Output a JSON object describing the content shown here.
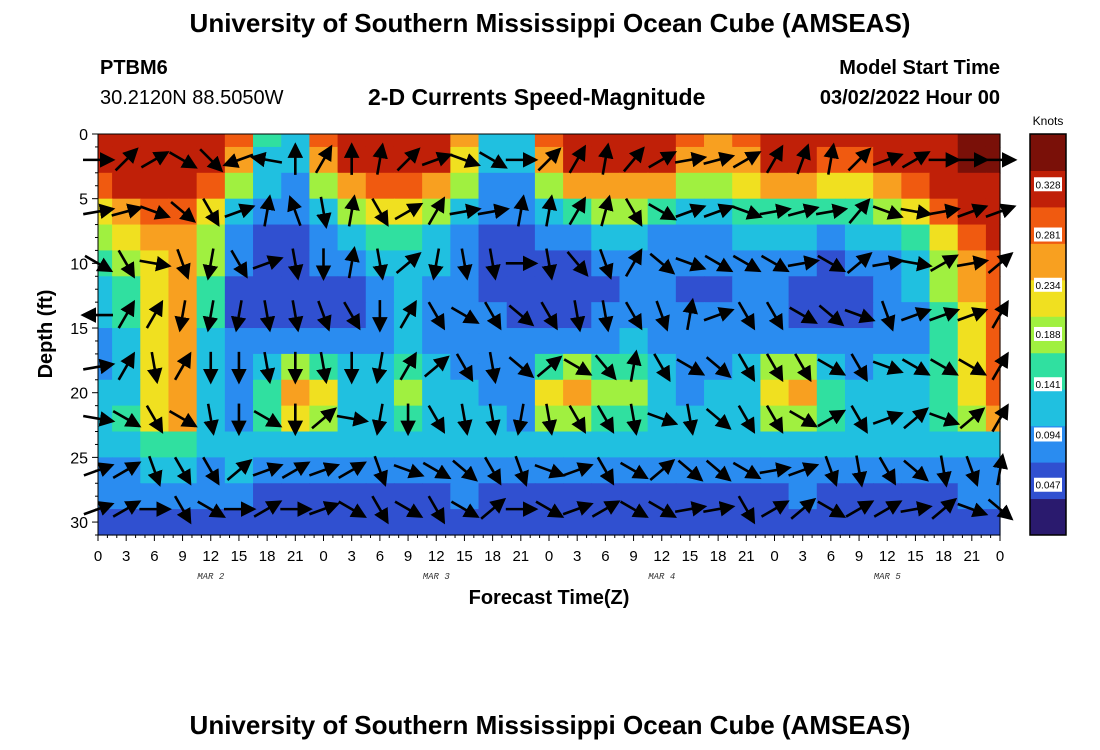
{
  "header": {
    "title": "University of Southern Mississippi Ocean Cube (AMSEAS)",
    "station": "PTBM6",
    "coords": "30.2120N  88.5050W",
    "plot_title": "2-D Currents Speed-Magnitude",
    "model_start_label": "Model Start Time",
    "model_start_value": "03/02/2022 Hour 00"
  },
  "footer": {
    "title": "University of Southern Mississippi Ocean Cube (AMSEAS)"
  },
  "chart_data": {
    "type": "heatmap",
    "title": "2-D Currents Speed-Magnitude",
    "xlabel": "Forecast Time(Z)",
    "ylabel": "Depth (ft)",
    "x_ticks": [
      "0",
      "3",
      "6",
      "9",
      "12",
      "15",
      "18",
      "21",
      "0",
      "3",
      "6",
      "9",
      "12",
      "15",
      "18",
      "21",
      "0",
      "3",
      "6",
      "9",
      "12",
      "15",
      "18",
      "21",
      "0",
      "3",
      "6",
      "9",
      "12",
      "15",
      "18",
      "21",
      "0"
    ],
    "x_hours_range": [
      0,
      96
    ],
    "day_labels": [
      {
        "label": "MAR 2",
        "hour": 12
      },
      {
        "label": "MAR 3",
        "hour": 36
      },
      {
        "label": "MAR 4",
        "hour": 60
      },
      {
        "label": "MAR 5",
        "hour": 84
      }
    ],
    "y_ticks": [
      0,
      5,
      10,
      15,
      20,
      25,
      30
    ],
    "ylim": [
      0,
      31
    ],
    "colorbar": {
      "unit": "Knots",
      "ticks": [
        0.328,
        0.281,
        0.234,
        0.188,
        0.141,
        0.094,
        0.047
      ],
      "range": [
        0.0,
        0.375
      ],
      "colors": [
        "#2a1a6e",
        "#3050d0",
        "#2a8cf0",
        "#20c0e0",
        "#30e0a0",
        "#a0f040",
        "#f0e020",
        "#f8a020",
        "#f05a10",
        "#c02008",
        "#7a1008"
      ]
    },
    "speed_grid": {
      "depths_ft": [
        0,
        2,
        4,
        6,
        8,
        10,
        12,
        14,
        16,
        18,
        20,
        22,
        24,
        26,
        28,
        30
      ],
      "hours": [
        0,
        3,
        6,
        9,
        12,
        15,
        18,
        21,
        24,
        27,
        30,
        33,
        36,
        39,
        42,
        45,
        48,
        51,
        54,
        57,
        60,
        63,
        66,
        69,
        72,
        75,
        78,
        81,
        84,
        87,
        90,
        93,
        96
      ],
      "values": [
        [
          0.33,
          0.33,
          0.34,
          0.34,
          0.33,
          0.3,
          0.15,
          0.1,
          0.3,
          0.33,
          0.34,
          0.34,
          0.33,
          0.28,
          0.12,
          0.1,
          0.3,
          0.33,
          0.34,
          0.33,
          0.33,
          0.3,
          0.28,
          0.3,
          0.33,
          0.33,
          0.33,
          0.32,
          0.33,
          0.34,
          0.35,
          0.36,
          0.36
        ],
        [
          0.33,
          0.33,
          0.34,
          0.34,
          0.32,
          0.25,
          0.12,
          0.1,
          0.28,
          0.32,
          0.33,
          0.33,
          0.32,
          0.24,
          0.1,
          0.1,
          0.28,
          0.32,
          0.33,
          0.32,
          0.32,
          0.28,
          0.26,
          0.28,
          0.32,
          0.32,
          0.31,
          0.3,
          0.32,
          0.34,
          0.35,
          0.36,
          0.36
        ],
        [
          0.3,
          0.32,
          0.33,
          0.33,
          0.3,
          0.2,
          0.1,
          0.09,
          0.2,
          0.28,
          0.3,
          0.3,
          0.28,
          0.18,
          0.09,
          0.09,
          0.2,
          0.26,
          0.28,
          0.28,
          0.26,
          0.2,
          0.2,
          0.22,
          0.26,
          0.26,
          0.24,
          0.24,
          0.26,
          0.3,
          0.33,
          0.35,
          0.35
        ],
        [
          0.24,
          0.28,
          0.3,
          0.3,
          0.24,
          0.12,
          0.07,
          0.06,
          0.12,
          0.18,
          0.22,
          0.22,
          0.2,
          0.12,
          0.07,
          0.06,
          0.1,
          0.16,
          0.18,
          0.18,
          0.16,
          0.12,
          0.12,
          0.14,
          0.16,
          0.16,
          0.15,
          0.16,
          0.18,
          0.24,
          0.3,
          0.33,
          0.34
        ],
        [
          0.18,
          0.22,
          0.26,
          0.28,
          0.2,
          0.08,
          0.05,
          0.04,
          0.08,
          0.1,
          0.14,
          0.16,
          0.12,
          0.08,
          0.05,
          0.04,
          0.06,
          0.08,
          0.1,
          0.1,
          0.08,
          0.07,
          0.08,
          0.1,
          0.1,
          0.1,
          0.09,
          0.1,
          0.12,
          0.16,
          0.24,
          0.3,
          0.32
        ],
        [
          0.14,
          0.18,
          0.24,
          0.28,
          0.18,
          0.06,
          0.04,
          0.02,
          0.06,
          0.06,
          0.1,
          0.12,
          0.1,
          0.07,
          0.05,
          0.03,
          0.04,
          0.05,
          0.06,
          0.08,
          0.07,
          0.06,
          0.06,
          0.08,
          0.08,
          0.06,
          0.04,
          0.06,
          0.08,
          0.12,
          0.2,
          0.28,
          0.31
        ],
        [
          0.12,
          0.16,
          0.24,
          0.28,
          0.16,
          0.05,
          0.04,
          0.03,
          0.05,
          0.04,
          0.08,
          0.1,
          0.09,
          0.06,
          0.05,
          0.04,
          0.03,
          0.03,
          0.05,
          0.07,
          0.06,
          0.05,
          0.05,
          0.06,
          0.06,
          0.05,
          0.03,
          0.05,
          0.06,
          0.1,
          0.18,
          0.26,
          0.3
        ],
        [
          0.1,
          0.14,
          0.24,
          0.28,
          0.14,
          0.05,
          0.05,
          0.04,
          0.05,
          0.02,
          0.06,
          0.1,
          0.08,
          0.06,
          0.06,
          0.05,
          0.04,
          0.04,
          0.06,
          0.08,
          0.06,
          0.06,
          0.06,
          0.06,
          0.06,
          0.05,
          0.04,
          0.05,
          0.06,
          0.08,
          0.16,
          0.24,
          0.3
        ],
        [
          0.09,
          0.12,
          0.24,
          0.28,
          0.12,
          0.06,
          0.06,
          0.06,
          0.07,
          0.06,
          0.08,
          0.12,
          0.09,
          0.08,
          0.07,
          0.06,
          0.07,
          0.08,
          0.09,
          0.12,
          0.09,
          0.08,
          0.08,
          0.08,
          0.08,
          0.07,
          0.06,
          0.07,
          0.08,
          0.08,
          0.14,
          0.22,
          0.3
        ],
        [
          0.08,
          0.11,
          0.24,
          0.27,
          0.12,
          0.07,
          0.1,
          0.18,
          0.16,
          0.1,
          0.1,
          0.16,
          0.1,
          0.09,
          0.08,
          0.08,
          0.16,
          0.2,
          0.14,
          0.16,
          0.1,
          0.08,
          0.09,
          0.1,
          0.18,
          0.2,
          0.12,
          0.09,
          0.1,
          0.1,
          0.14,
          0.22,
          0.3
        ],
        [
          0.1,
          0.12,
          0.24,
          0.27,
          0.12,
          0.08,
          0.14,
          0.26,
          0.24,
          0.12,
          0.12,
          0.18,
          0.1,
          0.1,
          0.09,
          0.08,
          0.22,
          0.26,
          0.18,
          0.18,
          0.1,
          0.09,
          0.1,
          0.12,
          0.24,
          0.26,
          0.14,
          0.1,
          0.1,
          0.1,
          0.14,
          0.22,
          0.3
        ],
        [
          0.12,
          0.14,
          0.22,
          0.26,
          0.12,
          0.09,
          0.14,
          0.22,
          0.2,
          0.12,
          0.12,
          0.16,
          0.11,
          0.1,
          0.1,
          0.09,
          0.18,
          0.2,
          0.16,
          0.16,
          0.11,
          0.1,
          0.1,
          0.12,
          0.2,
          0.2,
          0.14,
          0.11,
          0.11,
          0.11,
          0.14,
          0.2,
          0.26
        ],
        [
          0.1,
          0.12,
          0.14,
          0.16,
          0.11,
          0.1,
          0.1,
          0.12,
          0.12,
          0.1,
          0.1,
          0.1,
          0.1,
          0.1,
          0.1,
          0.1,
          0.12,
          0.12,
          0.1,
          0.1,
          0.1,
          0.1,
          0.1,
          0.1,
          0.12,
          0.12,
          0.11,
          0.1,
          0.1,
          0.1,
          0.11,
          0.12,
          0.12
        ],
        [
          0.08,
          0.09,
          0.1,
          0.1,
          0.09,
          0.1,
          0.09,
          0.08,
          0.08,
          0.08,
          0.07,
          0.07,
          0.08,
          0.09,
          0.08,
          0.08,
          0.08,
          0.08,
          0.07,
          0.07,
          0.08,
          0.09,
          0.08,
          0.08,
          0.08,
          0.09,
          0.08,
          0.08,
          0.08,
          0.08,
          0.08,
          0.09,
          0.09
        ],
        [
          0.06,
          0.07,
          0.07,
          0.06,
          0.06,
          0.06,
          0.05,
          0.05,
          0.05,
          0.05,
          0.04,
          0.04,
          0.05,
          0.06,
          0.05,
          0.05,
          0.05,
          0.05,
          0.04,
          0.04,
          0.05,
          0.05,
          0.05,
          0.05,
          0.05,
          0.06,
          0.05,
          0.05,
          0.05,
          0.05,
          0.05,
          0.06,
          0.06
        ],
        [
          0.05,
          0.05,
          0.05,
          0.04,
          0.04,
          0.04,
          0.04,
          0.04,
          0.04,
          0.04,
          0.03,
          0.03,
          0.04,
          0.04,
          0.04,
          0.04,
          0.04,
          0.04,
          0.03,
          0.03,
          0.04,
          0.04,
          0.04,
          0.04,
          0.04,
          0.04,
          0.04,
          0.04,
          0.04,
          0.04,
          0.04,
          0.04,
          0.05
        ]
      ]
    },
    "vectors_note": "current direction arrows at each time/depth grid point",
    "vector_grid": {
      "depths_ft": [
        2,
        6,
        10,
        14,
        18,
        22,
        26,
        29
      ],
      "hours": [
        0,
        3,
        6,
        9,
        12,
        15,
        18,
        21,
        24,
        27,
        30,
        33,
        36,
        39,
        42,
        45,
        48,
        51,
        54,
        57,
        60,
        63,
        66,
        69,
        72,
        75,
        78,
        81,
        84,
        87,
        90,
        93,
        96
      ],
      "angles_deg": [
        [
          0,
          45,
          30,
          -30,
          -45,
          200,
          170,
          90,
          60,
          90,
          80,
          45,
          20,
          -20,
          -30,
          0,
          45,
          60,
          80,
          50,
          30,
          10,
          15,
          30,
          60,
          70,
          80,
          45,
          20,
          30,
          0,
          0,
          0
        ],
        [
          10,
          15,
          -20,
          -40,
          -60,
          20,
          80,
          110,
          -80,
          80,
          -60,
          30,
          60,
          10,
          10,
          80,
          80,
          60,
          75,
          -60,
          -30,
          20,
          20,
          -20,
          10,
          15,
          10,
          50,
          -20,
          -10,
          10,
          20,
          20
        ],
        [
          -30,
          -60,
          -10,
          -70,
          -100,
          -60,
          20,
          -80,
          -90,
          80,
          -80,
          40,
          -100,
          -80,
          -80,
          0,
          -80,
          -50,
          -70,
          60,
          -40,
          -20,
          -30,
          -30,
          -30,
          10,
          -30,
          40,
          10,
          -10,
          30,
          10,
          40
        ],
        [
          180,
          60,
          60,
          -100,
          -100,
          -100,
          -80,
          -80,
          -70,
          -60,
          -90,
          60,
          -60,
          -30,
          -60,
          -40,
          -60,
          -80,
          -80,
          -60,
          -70,
          80,
          20,
          -60,
          -60,
          -30,
          -40,
          -20,
          -70,
          20,
          20,
          20,
          60
        ],
        [
          10,
          60,
          -80,
          60,
          -90,
          -90,
          -80,
          -90,
          -80,
          -90,
          -100,
          60,
          40,
          -60,
          -80,
          -40,
          40,
          -30,
          -50,
          80,
          -60,
          -30,
          -40,
          -60,
          -60,
          -60,
          -30,
          -60,
          -20,
          -30,
          -30,
          -30,
          60
        ],
        [
          -10,
          -30,
          -60,
          -30,
          -80,
          -90,
          -30,
          -90,
          40,
          -10,
          -100,
          -90,
          -60,
          -80,
          -80,
          -100,
          -80,
          -60,
          -60,
          -80,
          -20,
          -80,
          -40,
          -60,
          -60,
          -30,
          30,
          -60,
          20,
          40,
          -20,
          40,
          60
        ],
        [
          20,
          30,
          -70,
          -60,
          -60,
          40,
          20,
          30,
          20,
          30,
          -70,
          -20,
          -30,
          -40,
          -60,
          -70,
          -20,
          20,
          -60,
          -30,
          40,
          -40,
          -40,
          -30,
          10,
          20,
          -70,
          -80,
          -60,
          -40,
          -80,
          -70,
          80
        ],
        [
          20,
          30,
          0,
          -60,
          -30,
          0,
          30,
          0,
          20,
          -30,
          -60,
          -30,
          -60,
          -30,
          40,
          0,
          -30,
          20,
          30,
          -30,
          -30,
          10,
          10,
          -60,
          30,
          40,
          -30,
          30,
          30,
          10,
          40,
          -20,
          -40
        ]
      ]
    }
  }
}
